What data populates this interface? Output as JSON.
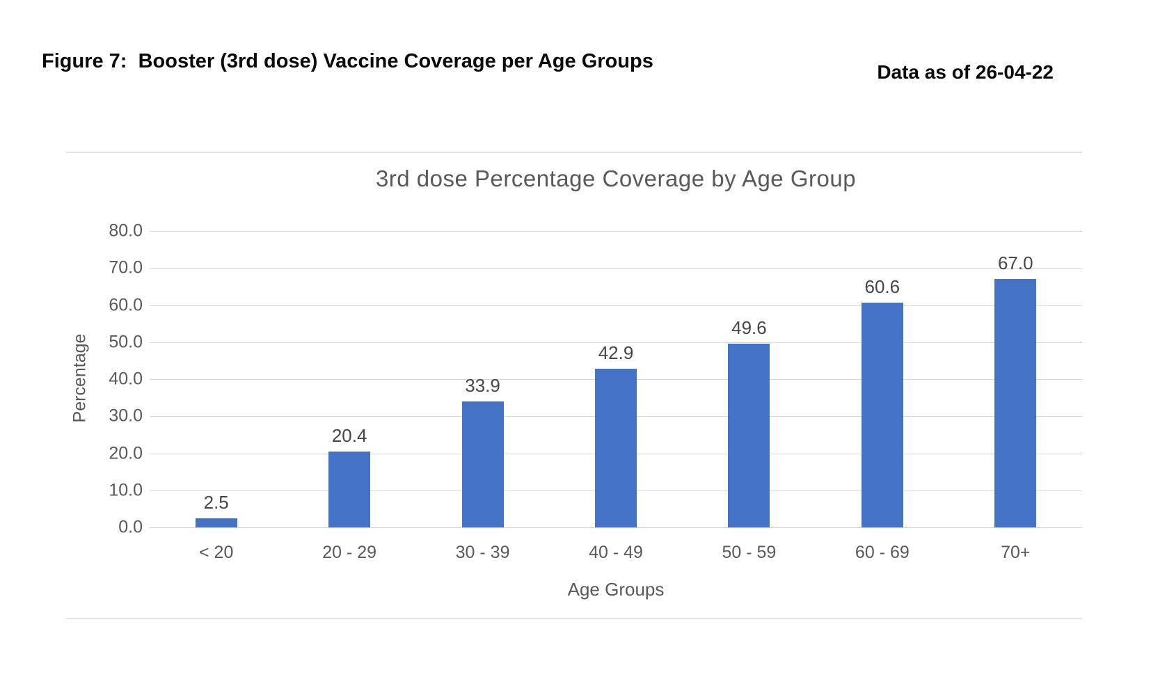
{
  "header": {
    "figure_caption": "Figure 7:  Booster (3rd dose) Vaccine Coverage per Age Groups",
    "data_as_of": "Data as of 26-04-22"
  },
  "chart_data": {
    "type": "bar",
    "title": "3rd dose Percentage Coverage by Age Group",
    "categories": [
      "< 20",
      "20 - 29",
      "30 - 39",
      "40 - 49",
      "50 - 59",
      "60 - 69",
      "70+"
    ],
    "values": [
      2.5,
      20.4,
      33.9,
      42.9,
      49.6,
      60.6,
      67.0
    ],
    "value_labels": [
      "2.5",
      "20.4",
      "33.9",
      "42.9",
      "49.6",
      "60.6",
      "67.0"
    ],
    "xlabel": "Age Groups",
    "ylabel": "Percentage",
    "ylim": [
      0,
      80
    ],
    "ytick_step": 10,
    "ytick_labels": [
      "0.0",
      "10.0",
      "20.0",
      "30.0",
      "40.0",
      "50.0",
      "60.0",
      "70.0",
      "80.0"
    ],
    "grid": true,
    "legend_position": "none",
    "colors": {
      "bar": "#4472c4",
      "gridline": "#d9d9d9",
      "axis_text": "#595959",
      "title_text": "#595959",
      "value_label_text": "#474747",
      "caption_text": "#0a0a0a"
    }
  }
}
